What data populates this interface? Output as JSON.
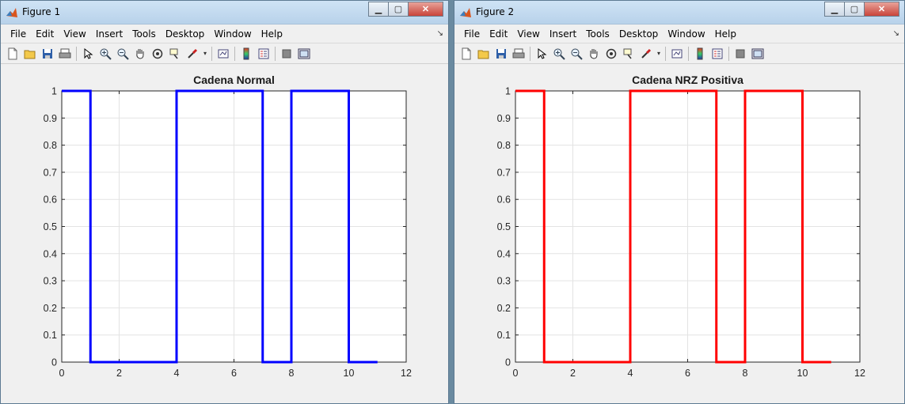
{
  "windows": [
    {
      "title": "Figure 1",
      "menus": [
        "File",
        "Edit",
        "View",
        "Insert",
        "Tools",
        "Desktop",
        "Window",
        "Help"
      ],
      "chart_data": {
        "type": "line",
        "title": "Cadena Normal",
        "xlabel": "",
        "ylabel": "",
        "xlim": [
          0,
          12
        ],
        "ylim": [
          0,
          1
        ],
        "xticks": [
          0,
          2,
          4,
          6,
          8,
          10,
          12
        ],
        "yticks": [
          0,
          0.1,
          0.2,
          0.3,
          0.4,
          0.5,
          0.6,
          0.7,
          0.8,
          0.9,
          1
        ],
        "grid": true,
        "series": [
          {
            "color": "#0000ff",
            "x": [
              0,
              1,
              1,
              4,
              4,
              7,
              7,
              8,
              8,
              10,
              10,
              11
            ],
            "y": [
              1,
              1,
              0,
              0,
              1,
              1,
              0,
              0,
              1,
              1,
              0,
              0
            ]
          }
        ]
      }
    },
    {
      "title": "Figure 2",
      "menus": [
        "File",
        "Edit",
        "View",
        "Insert",
        "Tools",
        "Desktop",
        "Window",
        "Help"
      ],
      "chart_data": {
        "type": "line",
        "title": "Cadena NRZ Positiva",
        "xlabel": "",
        "ylabel": "",
        "xlim": [
          0,
          12
        ],
        "ylim": [
          0,
          1
        ],
        "xticks": [
          0,
          2,
          4,
          6,
          8,
          10,
          12
        ],
        "yticks": [
          0,
          0.1,
          0.2,
          0.3,
          0.4,
          0.5,
          0.6,
          0.7,
          0.8,
          0.9,
          1
        ],
        "grid": true,
        "series": [
          {
            "color": "#ff0000",
            "x": [
              0,
              1,
              1,
              4,
              4,
              7,
              7,
              8,
              8,
              10,
              10,
              11
            ],
            "y": [
              1,
              1,
              0,
              0,
              1,
              1,
              0,
              0,
              1,
              1,
              0,
              0
            ]
          }
        ]
      }
    }
  ],
  "toolbar_icons": [
    "new-figure-icon",
    "open-file-icon",
    "save-icon",
    "print-icon",
    "edit-plot-arrow-icon",
    "zoom-in-icon",
    "zoom-out-icon",
    "pan-hand-icon",
    "rotate-3d-icon",
    "data-cursor-icon",
    "brush-icon",
    "link-plot-icon",
    "colorbar-icon",
    "legend-icon",
    "hide-plot-tools-icon",
    "show-plot-tools-icon"
  ]
}
